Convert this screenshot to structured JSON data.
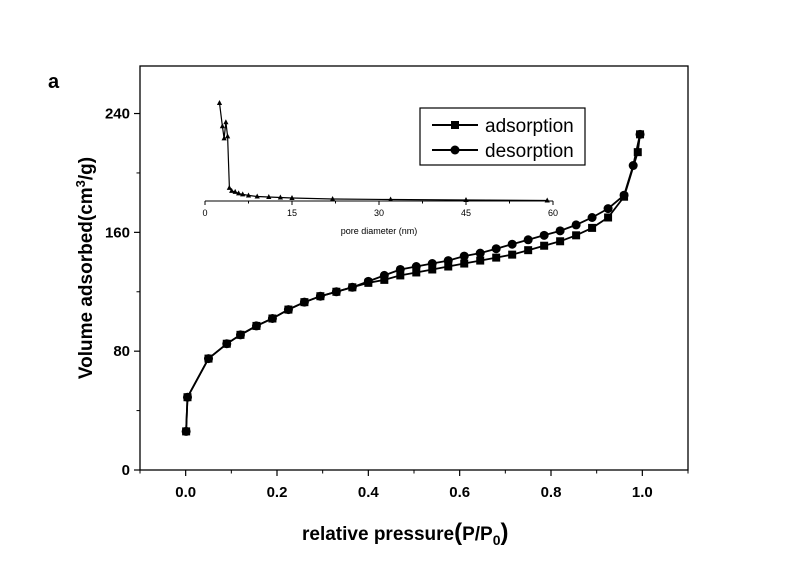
{
  "chart_data": [
    {
      "type": "line",
      "panel_label": "a",
      "xlabel": "relative pressure",
      "xlabel_unit_main": "P/P",
      "xlabel_unit_sub": "0",
      "ylabel_main": "Volume adsorbed(cm",
      "ylabel_sup": "3",
      "ylabel_tail": "/g)",
      "xlim": [
        -0.1,
        1.1
      ],
      "ylim": [
        0,
        272
      ],
      "xticks": [
        0.0,
        0.2,
        0.4,
        0.6,
        0.8,
        1.0
      ],
      "xtick_labels": [
        "0.0",
        "0.2",
        "0.4",
        "0.6",
        "0.8",
        "1.0"
      ],
      "yticks": [
        0,
        80,
        160,
        240
      ],
      "ytick_labels": [
        "0",
        "80",
        "160",
        "240"
      ],
      "legend_position": "top-right",
      "grid": false,
      "series": [
        {
          "name": "adsorption",
          "marker": "square",
          "x": [
            0.001,
            0.004,
            0.05,
            0.09,
            0.12,
            0.155,
            0.19,
            0.225,
            0.26,
            0.295,
            0.33,
            0.365,
            0.4,
            0.435,
            0.47,
            0.505,
            0.54,
            0.575,
            0.61,
            0.645,
            0.68,
            0.715,
            0.75,
            0.785,
            0.82,
            0.855,
            0.89,
            0.925,
            0.96,
            0.99,
            0.995
          ],
          "y": [
            26,
            49,
            75,
            85,
            91,
            97,
            102,
            108,
            113,
            117,
            120,
            123,
            126,
            128,
            131,
            133,
            135,
            137,
            139,
            141,
            143,
            145,
            148,
            151,
            154,
            158,
            163,
            170,
            184,
            214,
            226
          ]
        },
        {
          "name": "desorption",
          "marker": "circle",
          "x": [
            0.995,
            0.98,
            0.96,
            0.925,
            0.89,
            0.855,
            0.82,
            0.785,
            0.75,
            0.715,
            0.68,
            0.645,
            0.61,
            0.575,
            0.54,
            0.505,
            0.47,
            0.435,
            0.4,
            0.365,
            0.33,
            0.295,
            0.26,
            0.225,
            0.19,
            0.155,
            0.12,
            0.09,
            0.05,
            0.004,
            0.001
          ],
          "y": [
            226,
            205,
            185,
            176,
            170,
            165,
            161,
            158,
            155,
            152,
            149,
            146,
            144,
            141,
            139,
            137,
            135,
            131,
            127,
            123,
            120,
            117,
            113,
            108,
            102,
            97,
            91,
            85,
            75,
            49,
            26
          ]
        }
      ]
    },
    {
      "type": "line",
      "name": "inset",
      "xlabel": "pore diameter (nm)",
      "ylabel": "",
      "xlim": [
        0,
        60
      ],
      "ylim": [
        0,
        1.0
      ],
      "xticks": [
        0,
        15,
        30,
        45,
        60
      ],
      "xtick_labels": [
        "0",
        "15",
        "30",
        "45",
        "60"
      ],
      "grid": false,
      "series": [
        {
          "marker": "triangle",
          "x": [
            2.5,
            3.0,
            3.3,
            3.6,
            3.9,
            4.2,
            4.6,
            5.2,
            5.8,
            6.5,
            7.5,
            9,
            11,
            13,
            15,
            22,
            32,
            45,
            59
          ],
          "y": [
            0.97,
            0.74,
            0.62,
            0.78,
            0.64,
            0.13,
            0.1,
            0.09,
            0.075,
            0.065,
            0.055,
            0.045,
            0.04,
            0.035,
            0.03,
            0.02,
            0.015,
            0.01,
            0.005
          ]
        }
      ]
    }
  ]
}
